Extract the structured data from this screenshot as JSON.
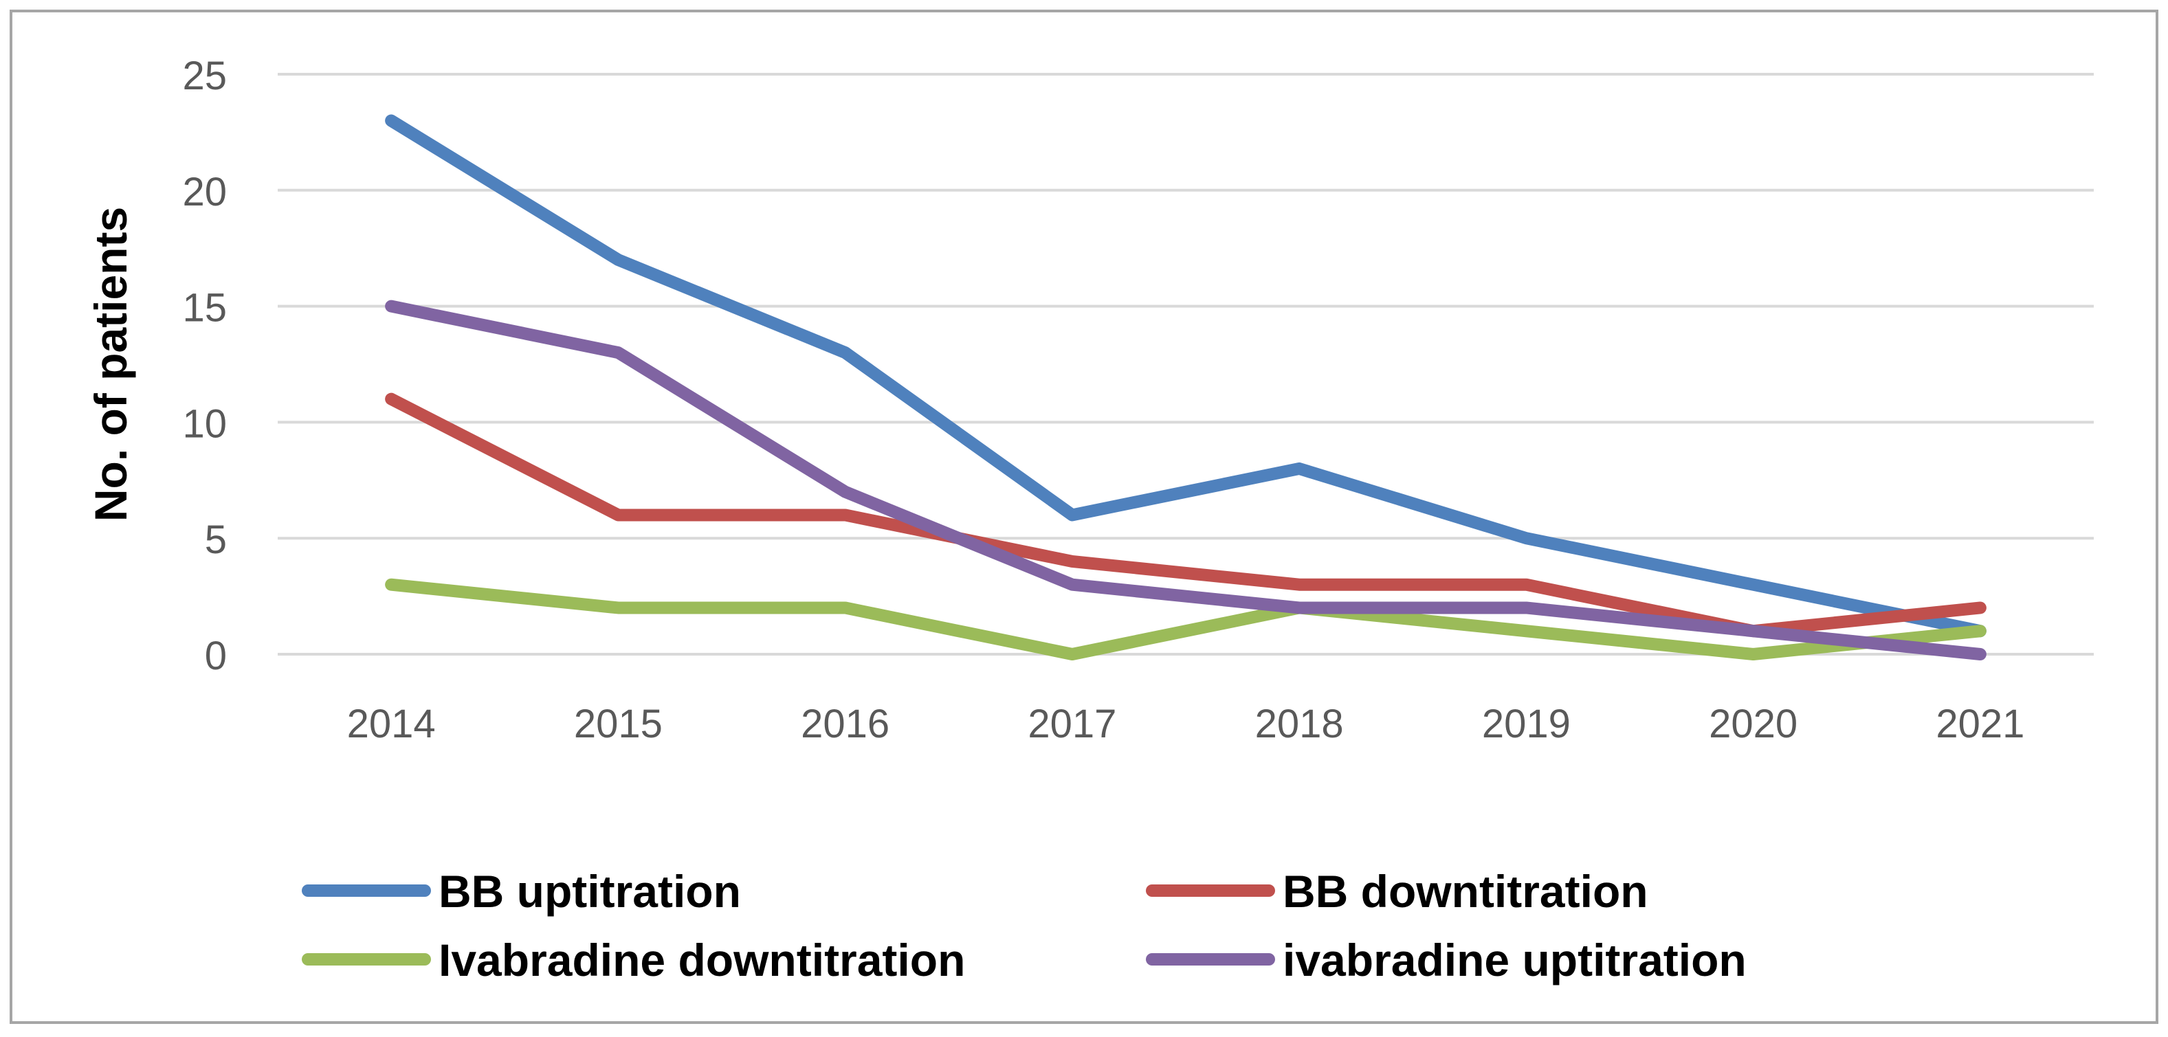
{
  "chart_data": {
    "type": "line",
    "title": "",
    "xlabel": "",
    "ylabel": "No. of patients",
    "categories": [
      "2014",
      "2015",
      "2016",
      "2017",
      "2018",
      "2019",
      "2020",
      "2021"
    ],
    "ylim": [
      0,
      25
    ],
    "yticks": [
      0,
      5,
      10,
      15,
      20,
      25
    ],
    "grid": true,
    "legend_position": "bottom",
    "series": [
      {
        "name": "BB uptitration",
        "color": "#4f81bd",
        "values": [
          23,
          17,
          13,
          6,
          8,
          5,
          3,
          1
        ]
      },
      {
        "name": "BB downtitration",
        "color": "#c0504d",
        "values": [
          11,
          6,
          6,
          4,
          3,
          3,
          1,
          2
        ]
      },
      {
        "name": "Ivabradine downtitration",
        "color": "#9bbb59",
        "values": [
          3,
          2,
          2,
          0,
          2,
          1,
          0,
          1
        ]
      },
      {
        "name": "ivabradine uptitration",
        "color": "#8064a2",
        "values": [
          15,
          13,
          7,
          3,
          2,
          2,
          1,
          0
        ]
      }
    ]
  }
}
